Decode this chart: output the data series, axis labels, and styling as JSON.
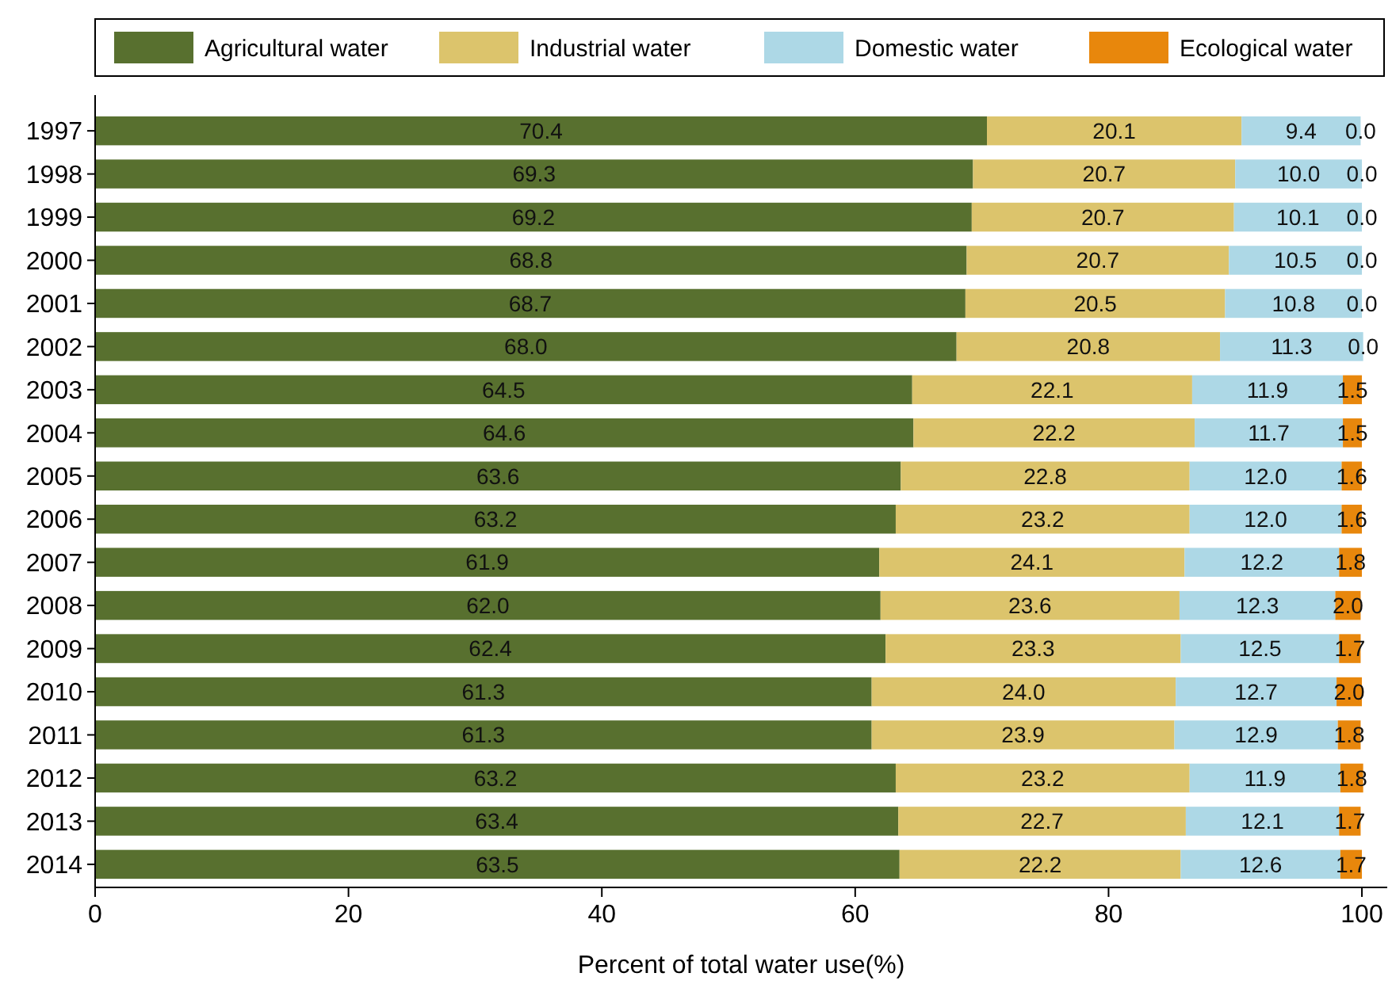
{
  "chart_data": {
    "type": "bar",
    "orientation": "horizontal",
    "stacked": true,
    "legend": "top",
    "grid": false,
    "xlabel": "Percent of total water use(%)",
    "categories": [
      "1997",
      "1998",
      "1999",
      "2000",
      "2001",
      "2002",
      "2003",
      "2004",
      "2005",
      "2006",
      "2007",
      "2008",
      "2009",
      "2010",
      "2011",
      "2012",
      "2013",
      "2014"
    ],
    "xlim": [
      0,
      102
    ],
    "xticks": [
      0,
      20,
      40,
      60,
      80,
      100
    ],
    "series": [
      {
        "name": "Agricultural water",
        "color": "#58702f",
        "values": [
          70.4,
          69.3,
          69.2,
          68.8,
          68.7,
          68.0,
          64.5,
          64.6,
          63.6,
          63.2,
          61.9,
          62.0,
          62.4,
          61.3,
          61.3,
          63.2,
          63.4,
          63.5
        ],
        "value_labels": [
          "70.4",
          "69.3",
          "69.2",
          "68.8",
          "68.7",
          "68.0",
          "64.5",
          "64.6",
          "63.6",
          "63.2",
          "61.9",
          "62.0",
          "62.4",
          "61.3",
          "61.3",
          "63.2",
          "63.4",
          "63.5"
        ]
      },
      {
        "name": "Industrial water",
        "color": "#dcc46c",
        "values": [
          20.1,
          20.7,
          20.7,
          20.7,
          20.5,
          20.8,
          22.1,
          22.2,
          22.8,
          23.2,
          24.1,
          23.6,
          23.3,
          24.0,
          23.9,
          23.2,
          22.7,
          22.2
        ],
        "value_labels": [
          "20.1",
          "20.7",
          "20.7",
          "20.7",
          "20.5",
          "20.8",
          "22.1",
          "22.2",
          "22.8",
          "23.2",
          "24.1",
          "23.6",
          "23.3",
          "24.0",
          "23.9",
          "23.2",
          "22.7",
          "22.2"
        ]
      },
      {
        "name": "Domestic water",
        "color": "#add8e6",
        "values": [
          9.4,
          10.0,
          10.1,
          10.5,
          10.8,
          11.3,
          11.9,
          11.7,
          12.0,
          12.0,
          12.2,
          12.3,
          12.5,
          12.7,
          12.9,
          11.9,
          12.1,
          12.6
        ],
        "value_labels": [
          "9.4",
          "10.0",
          "10.1",
          "10.5",
          "10.8",
          "11.3",
          "11.9",
          "11.7",
          "12.0",
          "12.0",
          "12.2",
          "12.3",
          "12.5",
          "12.7",
          "12.9",
          "11.9",
          "12.1",
          "12.6"
        ]
      },
      {
        "name": "Ecological water",
        "color": "#e8870c",
        "values": [
          0.0,
          0.0,
          0.0,
          0.0,
          0.0,
          0.0,
          1.5,
          1.5,
          1.6,
          1.6,
          1.8,
          2.0,
          1.7,
          2.0,
          1.8,
          1.8,
          1.7,
          1.7
        ],
        "value_labels": [
          "0.0",
          "0.0",
          "0.0",
          "0.0",
          "0.0",
          "0.0",
          "1.5",
          "1.5",
          "1.6",
          "1.6",
          "1.8",
          "2.0",
          "1.7",
          "2.0",
          "1.8",
          "1.8",
          "1.7",
          "1.7"
        ]
      }
    ]
  }
}
